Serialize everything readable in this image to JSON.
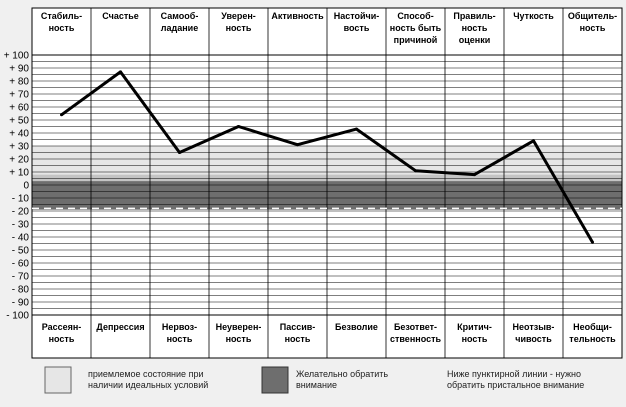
{
  "chart_data": {
    "type": "line",
    "top_labels": [
      [
        "Стабиль-",
        "ность"
      ],
      [
        "Счастье"
      ],
      [
        "Самооб-",
        "ладание"
      ],
      [
        "Уверен-",
        "ность"
      ],
      [
        "Активность"
      ],
      [
        "Настойчи-",
        "вость"
      ],
      [
        "Способ-",
        "ность быть",
        "причиной"
      ],
      [
        "Правиль-",
        "ность",
        "оценки"
      ],
      [
        "Чуткость"
      ],
      [
        "Общитель-",
        "ность"
      ]
    ],
    "bottom_labels": [
      [
        "Рассеян-",
        "ность"
      ],
      [
        "Депрессия"
      ],
      [
        "Нервоз-",
        "ность"
      ],
      [
        "Неуверен-",
        "ность"
      ],
      [
        "Пассив-",
        "ность"
      ],
      [
        "Безволие"
      ],
      [
        "Безответ-",
        "ственность"
      ],
      [
        "Критич-",
        "ность"
      ],
      [
        "Неотзыв-",
        "чивость"
      ],
      [
        "Необщи-",
        "тельность"
      ]
    ],
    "y_ticks": [
      "+ 100",
      "+ 90",
      "+ 80",
      "+ 70",
      "+ 60",
      "+ 50",
      "+ 40",
      "+ 30",
      "+ 20",
      "+ 10",
      "0",
      "- 10",
      "- 20",
      "- 30",
      "- 40",
      "- 50",
      "- 60",
      "- 70",
      "- 80",
      "- 90",
      "- 100"
    ],
    "ylim": [
      -100,
      100
    ],
    "values": [
      54,
      87,
      25,
      45,
      31,
      43,
      11,
      8,
      34,
      -44
    ],
    "bands": [
      {
        "from": 8,
        "to": 30,
        "color": "#e6e6e6"
      },
      {
        "from": 3,
        "to": 8,
        "color": "#c4c4c4"
      },
      {
        "from": -19,
        "to": 3,
        "color": "#6e6e6e"
      }
    ],
    "dashed_line": -18,
    "line_color": "#000000",
    "grid": true
  },
  "legend": {
    "item1": [
      "приемлемое состояние при",
      "наличии идеальных условий"
    ],
    "item2": [
      "Желательно обратить",
      "внимание"
    ],
    "item3": [
      "Ниже пунктирной линии - нужно",
      "обратить пристальное внимание"
    ],
    "color1": "#e6e6e6",
    "color2": "#6e6e6e"
  }
}
